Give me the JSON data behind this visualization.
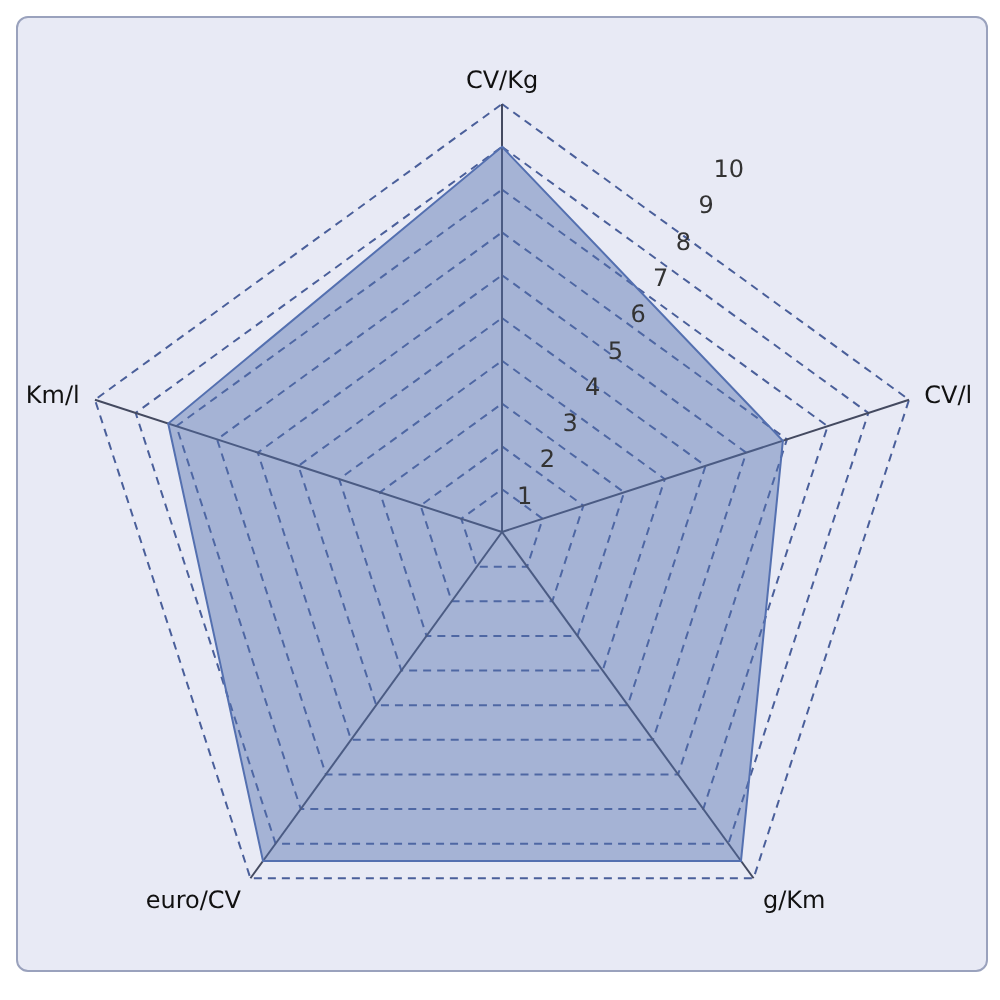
{
  "chart_data": {
    "type": "radar",
    "categories": [
      "CV/Kg",
      "CV/l",
      "g/Km",
      "euro/CV",
      "Km/l"
    ],
    "series": [
      {
        "color": "#5470b0",
        "values": [
          9,
          6.9,
          9.5,
          9.5,
          8.2
        ]
      }
    ],
    "ylim": [
      0,
      10
    ],
    "yticks": [
      1,
      2,
      3,
      4,
      5,
      6,
      7,
      8,
      9,
      10
    ],
    "grid": true,
    "legend": false,
    "marker": "none"
  }
}
